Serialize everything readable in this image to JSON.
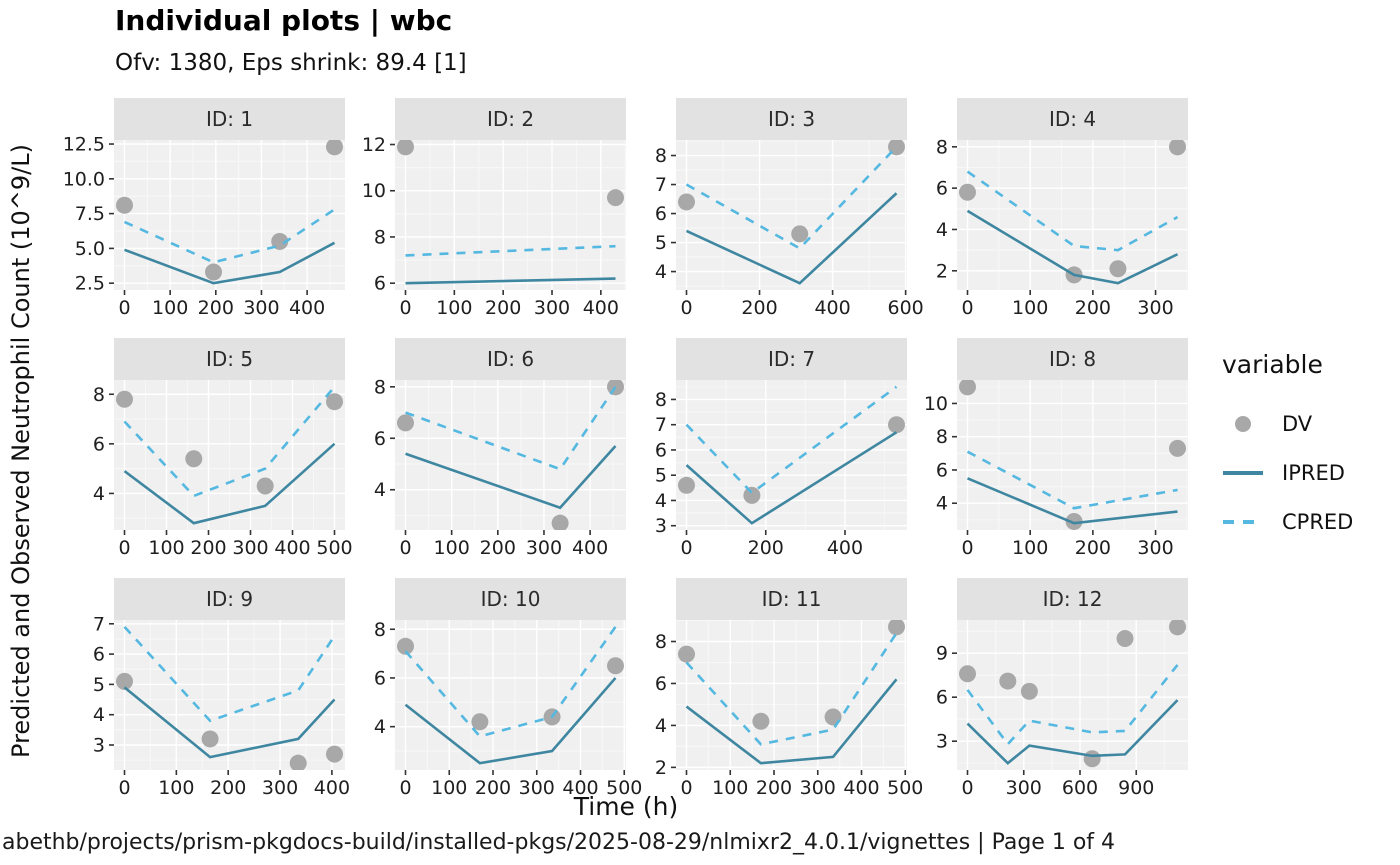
{
  "colors": {
    "dv": "#a8a8a8",
    "ipred": "#3f87a1",
    "cpred": "#55b8e0",
    "strip_bg": "#e2e2e2",
    "panel_bg": "#f0f0f0",
    "grid_major": "#ffffff",
    "grid_minor": "#f7f7f7",
    "tick": "#333333"
  },
  "chart_data": {
    "type": "line",
    "title": "Individual plots | wbc",
    "subtitle": "Ofv: 1380, Eps shrink: 89.4 [1]",
    "xlabel": "Time (h)",
    "ylabel": "Predicted and Observed Neutrophil Count (10^9/L)",
    "caption": "abethb/projects/prism-pkgdocs-build/installed-pkgs/2025-08-29/nlmixr2_4.0.1/vignettes | Page 1 of 4",
    "legend": {
      "title": "variable",
      "position": "right",
      "entries": [
        {
          "label": "DV",
          "symbol": "point"
        },
        {
          "label": "IPRED",
          "symbol": "solid-line"
        },
        {
          "label": "CPRED",
          "symbol": "dashed-line"
        }
      ]
    },
    "grid": "major+minor",
    "facets": [
      {
        "id_label": "ID: 1",
        "x_ticks": [
          "0",
          "100",
          "200",
          "300",
          "400"
        ],
        "y_ticks": [
          "2.5",
          "5.0",
          "7.5",
          "10.0",
          "12.5"
        ],
        "series": [
          {
            "name": "DV",
            "geom": "point",
            "points": [
              [
                0,
                8.1
              ],
              [
                195,
                3.3
              ],
              [
                340,
                5.5
              ],
              [
                460,
                12.3
              ]
            ]
          },
          {
            "name": "IPRED",
            "geom": "line",
            "points": [
              [
                0,
                4.9
              ],
              [
                195,
                2.5
              ],
              [
                340,
                3.3
              ],
              [
                460,
                5.4
              ]
            ]
          },
          {
            "name": "CPRED",
            "geom": "dashed-line",
            "points": [
              [
                0,
                6.9
              ],
              [
                195,
                4.0
              ],
              [
                340,
                5.2
              ],
              [
                460,
                7.8
              ]
            ]
          }
        ]
      },
      {
        "id_label": "ID: 2",
        "x_ticks": [
          "0",
          "100",
          "200",
          "300",
          "400"
        ],
        "y_ticks": [
          "6",
          "8",
          "10",
          "12"
        ],
        "series": [
          {
            "name": "DV",
            "geom": "point",
            "points": [
              [
                0,
                11.9
              ],
              [
                430,
                9.7
              ]
            ]
          },
          {
            "name": "IPRED",
            "geom": "line",
            "points": [
              [
                0,
                6.0
              ],
              [
                430,
                6.2
              ]
            ]
          },
          {
            "name": "CPRED",
            "geom": "dashed-line",
            "points": [
              [
                0,
                7.2
              ],
              [
                430,
                7.6
              ]
            ]
          }
        ]
      },
      {
        "id_label": "ID: 3",
        "x_ticks": [
          "0",
          "200",
          "400",
          "600"
        ],
        "y_ticks": [
          "4",
          "5",
          "6",
          "7",
          "8"
        ],
        "series": [
          {
            "name": "DV",
            "geom": "point",
            "points": [
              [
                0,
                6.4
              ],
              [
                310,
                5.3
              ],
              [
                575,
                8.3
              ]
            ]
          },
          {
            "name": "IPRED",
            "geom": "line",
            "points": [
              [
                0,
                5.4
              ],
              [
                310,
                3.6
              ],
              [
                575,
                6.7
              ]
            ]
          },
          {
            "name": "CPRED",
            "geom": "dashed-line",
            "points": [
              [
                0,
                7.0
              ],
              [
                310,
                4.8
              ],
              [
                575,
                8.3
              ]
            ]
          }
        ]
      },
      {
        "id_label": "ID: 4",
        "x_ticks": [
          "0",
          "100",
          "200",
          "300"
        ],
        "y_ticks": [
          "2",
          "4",
          "6",
          "8"
        ],
        "series": [
          {
            "name": "DV",
            "geom": "point",
            "points": [
              [
                0,
                5.8
              ],
              [
                170,
                1.8
              ],
              [
                240,
                2.1
              ],
              [
                335,
                8.0
              ]
            ]
          },
          {
            "name": "IPRED",
            "geom": "line",
            "points": [
              [
                0,
                4.9
              ],
              [
                170,
                1.8
              ],
              [
                240,
                1.4
              ],
              [
                335,
                2.8
              ]
            ]
          },
          {
            "name": "CPRED",
            "geom": "dashed-line",
            "points": [
              [
                0,
                6.8
              ],
              [
                170,
                3.2
              ],
              [
                240,
                3.0
              ],
              [
                335,
                4.6
              ]
            ]
          }
        ]
      },
      {
        "id_label": "ID: 5",
        "x_ticks": [
          "0",
          "100",
          "200",
          "300",
          "400",
          "500"
        ],
        "y_ticks": [
          "4",
          "6",
          "8"
        ],
        "series": [
          {
            "name": "DV",
            "geom": "point",
            "points": [
              [
                0,
                7.8
              ],
              [
                165,
                5.4
              ],
              [
                335,
                4.3
              ],
              [
                500,
                7.7
              ]
            ]
          },
          {
            "name": "IPRED",
            "geom": "line",
            "points": [
              [
                0,
                4.9
              ],
              [
                165,
                2.8
              ],
              [
                335,
                3.5
              ],
              [
                500,
                6.0
              ]
            ]
          },
          {
            "name": "CPRED",
            "geom": "dashed-line",
            "points": [
              [
                0,
                6.9
              ],
              [
                165,
                3.9
              ],
              [
                335,
                5.0
              ],
              [
                500,
                8.3
              ]
            ]
          }
        ]
      },
      {
        "id_label": "ID: 6",
        "x_ticks": [
          "0",
          "100",
          "200",
          "300",
          "400"
        ],
        "y_ticks": [
          "4",
          "6",
          "8"
        ],
        "series": [
          {
            "name": "DV",
            "geom": "point",
            "points": [
              [
                0,
                6.6
              ],
              [
                335,
                2.7
              ],
              [
                455,
                8.0
              ]
            ]
          },
          {
            "name": "IPRED",
            "geom": "line",
            "points": [
              [
                0,
                5.4
              ],
              [
                335,
                3.3
              ],
              [
                455,
                5.7
              ]
            ]
          },
          {
            "name": "CPRED",
            "geom": "dashed-line",
            "points": [
              [
                0,
                7.0
              ],
              [
                335,
                4.8
              ],
              [
                455,
                8.0
              ]
            ]
          }
        ]
      },
      {
        "id_label": "ID: 7",
        "x_ticks": [
          "0",
          "200",
          "400"
        ],
        "y_ticks": [
          "3",
          "4",
          "5",
          "6",
          "7",
          "8"
        ],
        "series": [
          {
            "name": "DV",
            "geom": "point",
            "points": [
              [
                0,
                4.6
              ],
              [
                165,
                4.2
              ],
              [
                530,
                7.0
              ]
            ]
          },
          {
            "name": "IPRED",
            "geom": "line",
            "points": [
              [
                0,
                5.4
              ],
              [
                165,
                3.1
              ],
              [
                530,
                6.7
              ]
            ]
          },
          {
            "name": "CPRED",
            "geom": "dashed-line",
            "points": [
              [
                0,
                7.0
              ],
              [
                165,
                4.3
              ],
              [
                530,
                8.5
              ]
            ]
          }
        ]
      },
      {
        "id_label": "ID: 8",
        "x_ticks": [
          "0",
          "100",
          "200",
          "300"
        ],
        "y_ticks": [
          "4",
          "6",
          "8",
          "10"
        ],
        "series": [
          {
            "name": "DV",
            "geom": "point",
            "points": [
              [
                0,
                11.0
              ],
              [
                170,
                2.9
              ],
              [
                335,
                7.3
              ]
            ]
          },
          {
            "name": "IPRED",
            "geom": "line",
            "points": [
              [
                0,
                5.5
              ],
              [
                170,
                2.8
              ],
              [
                335,
                3.5
              ]
            ]
          },
          {
            "name": "CPRED",
            "geom": "dashed-line",
            "points": [
              [
                0,
                7.1
              ],
              [
                170,
                3.7
              ],
              [
                335,
                4.8
              ]
            ]
          }
        ]
      },
      {
        "id_label": "ID: 9",
        "x_ticks": [
          "0",
          "100",
          "200",
          "300",
          "400"
        ],
        "y_ticks": [
          "3",
          "4",
          "5",
          "6",
          "7"
        ],
        "series": [
          {
            "name": "DV",
            "geom": "point",
            "points": [
              [
                0,
                5.1
              ],
              [
                165,
                3.2
              ],
              [
                335,
                2.4
              ],
              [
                405,
                2.7
              ]
            ]
          },
          {
            "name": "IPRED",
            "geom": "line",
            "points": [
              [
                0,
                4.9
              ],
              [
                165,
                2.6
              ],
              [
                335,
                3.2
              ],
              [
                405,
                4.5
              ]
            ]
          },
          {
            "name": "CPRED",
            "geom": "dashed-line",
            "points": [
              [
                0,
                6.9
              ],
              [
                165,
                3.8
              ],
              [
                335,
                4.8
              ],
              [
                405,
                6.6
              ]
            ]
          }
        ]
      },
      {
        "id_label": "ID: 10",
        "x_ticks": [
          "0",
          "100",
          "200",
          "300",
          "400",
          "500"
        ],
        "y_ticks": [
          "4",
          "6",
          "8"
        ],
        "series": [
          {
            "name": "DV",
            "geom": "point",
            "points": [
              [
                0,
                7.3
              ],
              [
                170,
                4.2
              ],
              [
                335,
                4.4
              ],
              [
                480,
                6.5
              ]
            ]
          },
          {
            "name": "IPRED",
            "geom": "line",
            "points": [
              [
                0,
                4.9
              ],
              [
                170,
                2.5
              ],
              [
                335,
                3.0
              ],
              [
                480,
                6.0
              ]
            ]
          },
          {
            "name": "CPRED",
            "geom": "dashed-line",
            "points": [
              [
                0,
                7.1
              ],
              [
                170,
                3.6
              ],
              [
                335,
                4.4
              ],
              [
                480,
                8.1
              ]
            ]
          }
        ]
      },
      {
        "id_label": "ID: 11",
        "x_ticks": [
          "0",
          "100",
          "200",
          "300",
          "400",
          "500"
        ],
        "y_ticks": [
          "2",
          "4",
          "6",
          "8"
        ],
        "series": [
          {
            "name": "DV",
            "geom": "point",
            "points": [
              [
                0,
                7.4
              ],
              [
                170,
                4.2
              ],
              [
                335,
                4.4
              ],
              [
                480,
                8.7
              ]
            ]
          },
          {
            "name": "IPRED",
            "geom": "line",
            "points": [
              [
                0,
                4.9
              ],
              [
                170,
                2.2
              ],
              [
                335,
                2.5
              ],
              [
                480,
                6.2
              ]
            ]
          },
          {
            "name": "CPRED",
            "geom": "dashed-line",
            "points": [
              [
                0,
                7.0
              ],
              [
                170,
                3.1
              ],
              [
                335,
                3.8
              ],
              [
                480,
                8.4
              ]
            ]
          }
        ]
      },
      {
        "id_label": "ID: 12",
        "x_ticks": [
          "0",
          "300",
          "600",
          "900"
        ],
        "y_ticks": [
          "3",
          "6",
          "9"
        ],
        "series": [
          {
            "name": "DV",
            "geom": "point",
            "points": [
              [
                0,
                7.6
              ],
              [
                215,
                7.1
              ],
              [
                330,
                6.4
              ],
              [
                665,
                1.8
              ],
              [
                840,
                10.0
              ],
              [
                1120,
                10.8
              ]
            ]
          },
          {
            "name": "IPRED",
            "geom": "line",
            "points": [
              [
                0,
                4.2
              ],
              [
                215,
                1.5
              ],
              [
                330,
                2.7
              ],
              [
                665,
                2.0
              ],
              [
                840,
                2.1
              ],
              [
                1120,
                5.8
              ]
            ]
          },
          {
            "name": "CPRED",
            "geom": "dashed-line",
            "points": [
              [
                0,
                6.5
              ],
              [
                215,
                2.8
              ],
              [
                330,
                4.4
              ],
              [
                665,
                3.6
              ],
              [
                840,
                3.7
              ],
              [
                1120,
                8.2
              ]
            ]
          }
        ]
      }
    ]
  }
}
